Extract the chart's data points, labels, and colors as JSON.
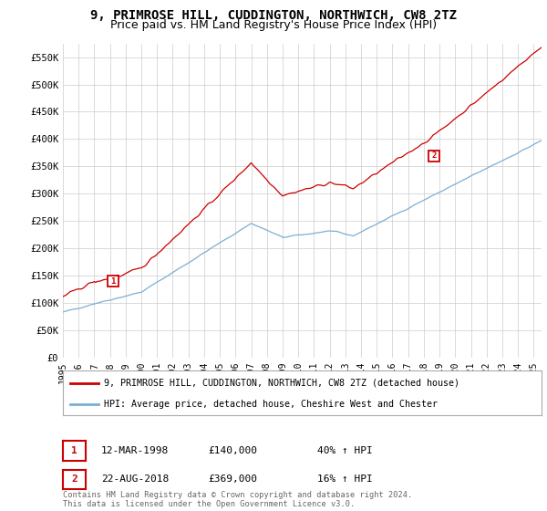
{
  "title": "9, PRIMROSE HILL, CUDDINGTON, NORTHWICH, CW8 2TZ",
  "subtitle": "Price paid vs. HM Land Registry's House Price Index (HPI)",
  "title_fontsize": 10,
  "subtitle_fontsize": 9,
  "ylabel_ticks": [
    "£0",
    "£50K",
    "£100K",
    "£150K",
    "£200K",
    "£250K",
    "£300K",
    "£350K",
    "£400K",
    "£450K",
    "£500K",
    "£550K"
  ],
  "ytick_values": [
    0,
    50000,
    100000,
    150000,
    200000,
    250000,
    300000,
    350000,
    400000,
    450000,
    500000,
    550000
  ],
  "ylim": [
    0,
    575000
  ],
  "xlim_start": 1995.0,
  "xlim_end": 2025.5,
  "xtick_years": [
    1995,
    1996,
    1997,
    1998,
    1999,
    2000,
    2001,
    2002,
    2003,
    2004,
    2005,
    2006,
    2007,
    2008,
    2009,
    2010,
    2011,
    2012,
    2013,
    2014,
    2015,
    2016,
    2017,
    2018,
    2019,
    2020,
    2021,
    2022,
    2023,
    2024,
    2025
  ],
  "grid_color": "#cccccc",
  "bg_color": "#ffffff",
  "sale1_date_x": 1998.18,
  "sale1_price": 140000,
  "sale1_label": "1",
  "sale2_date_x": 2018.63,
  "sale2_price": 369000,
  "sale2_label": "2",
  "legend_line1": "9, PRIMROSE HILL, CUDDINGTON, NORTHWICH, CW8 2TZ (detached house)",
  "legend_line2": "HPI: Average price, detached house, Cheshire West and Chester",
  "annotation1_box": "1",
  "annotation1_date": "12-MAR-1998",
  "annotation1_price": "£140,000",
  "annotation1_hpi": "40% ↑ HPI",
  "annotation2_box": "2",
  "annotation2_date": "22-AUG-2018",
  "annotation2_price": "£369,000",
  "annotation2_hpi": "16% ↑ HPI",
  "footer": "Contains HM Land Registry data © Crown copyright and database right 2024.\nThis data is licensed under the Open Government Licence v3.0.",
  "line_color_red": "#cc0000",
  "line_color_blue": "#7bafd4",
  "marker_box_color": "#cc0000"
}
